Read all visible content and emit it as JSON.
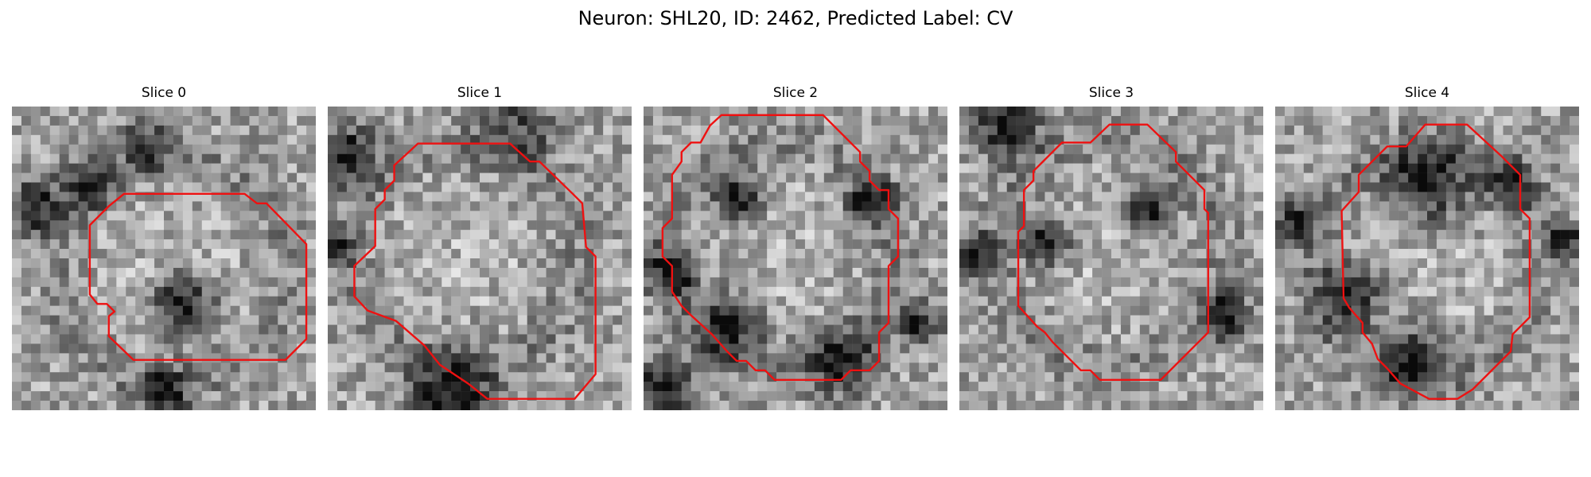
{
  "figure": {
    "title": "Neuron: SHL20, ID: 2462, Predicted Label: CV"
  },
  "contour_color": "#ee1111",
  "grid_size": 32,
  "slices": [
    {
      "title": "Slice 0",
      "seed": 11,
      "darks": [
        [
          2.5,
          10.5,
          3.2,
          4.2
        ],
        [
          8.0,
          8.0,
          3.0,
          1.2
        ],
        [
          18.0,
          21.0,
          4.0,
          1.6
        ],
        [
          16.0,
          30.0,
          3.0,
          1.3
        ],
        [
          14.0,
          4.0,
          3.0,
          0.8
        ]
      ],
      "contour": [
        [
          11.8,
          9.2
        ],
        [
          24.5,
          9.2
        ],
        [
          25.8,
          10.2
        ],
        [
          26.8,
          10.2
        ],
        [
          31.0,
          14.5
        ],
        [
          31.0,
          24.5
        ],
        [
          28.8,
          26.7
        ],
        [
          12.8,
          26.7
        ],
        [
          10.2,
          24.2
        ],
        [
          10.2,
          22.1
        ],
        [
          10.8,
          21.6
        ],
        [
          10.0,
          20.8
        ],
        [
          9.0,
          20.8
        ],
        [
          8.2,
          19.8
        ],
        [
          8.2,
          12.5
        ],
        [
          10.2,
          10.5
        ]
      ]
    },
    {
      "title": "Slice 1",
      "seed": 23,
      "darks": [
        [
          2.0,
          5.0,
          3.6,
          4.5
        ],
        [
          1.0,
          15.0,
          2.0,
          1.0
        ],
        [
          13.0,
          30.0,
          5.0,
          1.0
        ],
        [
          20.0,
          2.0,
          5.0,
          0.6
        ]
      ],
      "contour": [
        [
          9.5,
          3.9
        ],
        [
          19.2,
          3.9
        ],
        [
          21.3,
          5.8
        ],
        [
          22.3,
          5.8
        ],
        [
          25.8,
          9.2
        ],
        [
          26.8,
          10.2
        ],
        [
          27.2,
          14.8
        ],
        [
          28.2,
          15.8
        ],
        [
          28.2,
          28.2
        ],
        [
          26.0,
          30.8
        ],
        [
          16.8,
          30.8
        ],
        [
          14.8,
          29.2
        ],
        [
          11.8,
          27.2
        ],
        [
          10.2,
          25.2
        ],
        [
          7.2,
          22.6
        ],
        [
          4.2,
          21.5
        ],
        [
          2.8,
          20.0
        ],
        [
          2.8,
          16.8
        ],
        [
          5.0,
          14.7
        ],
        [
          5.0,
          10.8
        ],
        [
          6.0,
          9.8
        ],
        [
          6.0,
          8.8
        ],
        [
          7.0,
          7.8
        ],
        [
          7.0,
          6.2
        ]
      ]
    },
    {
      "title": "Slice 2",
      "seed": 37,
      "darks": [
        [
          3.0,
          17.5,
          3.0,
          4.0
        ],
        [
          21.0,
          27.0,
          4.0,
          3.0
        ],
        [
          29.0,
          23.0,
          2.5,
          2.0
        ],
        [
          10.0,
          10.0,
          3.0,
          1.5
        ],
        [
          9.0,
          23.0,
          4.0,
          1.5
        ],
        [
          24.0,
          10.0,
          3.0,
          1.2
        ],
        [
          2.0,
          30.0,
          4.0,
          1.0
        ]
      ],
      "contour": [
        [
          8.2,
          0.9
        ],
        [
          18.9,
          0.9
        ],
        [
          22.8,
          4.8
        ],
        [
          22.8,
          5.8
        ],
        [
          23.8,
          6.8
        ],
        [
          23.8,
          7.8
        ],
        [
          24.8,
          8.8
        ],
        [
          25.8,
          8.8
        ],
        [
          25.8,
          10.8
        ],
        [
          26.8,
          11.8
        ],
        [
          26.8,
          15.8
        ],
        [
          25.8,
          16.8
        ],
        [
          25.8,
          22.8
        ],
        [
          24.8,
          23.8
        ],
        [
          24.8,
          26.8
        ],
        [
          23.8,
          27.8
        ],
        [
          21.8,
          27.8
        ],
        [
          20.8,
          28.8
        ],
        [
          13.8,
          28.8
        ],
        [
          12.8,
          27.8
        ],
        [
          11.8,
          27.8
        ],
        [
          10.8,
          26.8
        ],
        [
          9.8,
          26.8
        ],
        [
          8.8,
          25.8
        ],
        [
          7.2,
          24.0
        ],
        [
          5.0,
          22.0
        ],
        [
          4.0,
          21.0
        ],
        [
          3.0,
          19.5
        ],
        [
          3.0,
          16.8
        ],
        [
          2.0,
          15.8
        ],
        [
          2.0,
          12.8
        ],
        [
          3.0,
          11.8
        ],
        [
          3.0,
          7.2
        ],
        [
          4.0,
          5.8
        ],
        [
          4.0,
          4.8
        ],
        [
          5.0,
          3.8
        ],
        [
          6.0,
          3.8
        ],
        [
          7.0,
          2.0
        ]
      ]
    },
    {
      "title": "Slice 3",
      "seed": 53,
      "darks": [
        [
          1.5,
          15.5,
          2.5,
          3.0
        ],
        [
          28.0,
          22.0,
          3.0,
          1.4
        ],
        [
          9.0,
          14.0,
          3.0,
          1.2
        ],
        [
          20.0,
          11.0,
          3.0,
          1.0
        ],
        [
          5.0,
          2.0,
          4.0,
          1.0
        ]
      ],
      "contour": [
        [
          15.8,
          1.9
        ],
        [
          19.8,
          1.9
        ],
        [
          22.8,
          4.8
        ],
        [
          22.8,
          5.8
        ],
        [
          25.8,
          8.8
        ],
        [
          25.8,
          10.8
        ],
        [
          26.2,
          11.2
        ],
        [
          26.2,
          23.8
        ],
        [
          25.0,
          25.0
        ],
        [
          24.2,
          25.8
        ],
        [
          22.8,
          27.2
        ],
        [
          22.2,
          27.8
        ],
        [
          21.2,
          28.8
        ],
        [
          14.8,
          28.8
        ],
        [
          13.8,
          27.8
        ],
        [
          12.8,
          27.8
        ],
        [
          9.8,
          24.8
        ],
        [
          9.0,
          23.8
        ],
        [
          8.2,
          23.2
        ],
        [
          6.2,
          21.0
        ],
        [
          6.2,
          13.2
        ],
        [
          6.8,
          12.6
        ],
        [
          6.8,
          8.8
        ],
        [
          7.8,
          7.8
        ],
        [
          7.8,
          6.8
        ],
        [
          8.8,
          5.8
        ],
        [
          9.8,
          4.8
        ],
        [
          10.8,
          3.8
        ],
        [
          13.8,
          3.8
        ]
      ]
    },
    {
      "title": "Slice 4",
      "seed": 71,
      "darks": [
        [
          14.5,
          27.0,
          4.0,
          4.5
        ],
        [
          2.0,
          12.0,
          2.5,
          3.5
        ],
        [
          30.5,
          14.0,
          2.0,
          3.0
        ],
        [
          8.0,
          20.0,
          4.0,
          1.0
        ],
        [
          25.0,
          8.0,
          3.0,
          0.8
        ],
        [
          16.0,
          8.0,
          5.0,
          1.2
        ]
      ],
      "contour": [
        [
          15.8,
          1.9
        ],
        [
          20.2,
          1.9
        ],
        [
          23.8,
          5.2
        ],
        [
          25.8,
          7.2
        ],
        [
          25.8,
          10.8
        ],
        [
          26.8,
          11.8
        ],
        [
          26.8,
          22.2
        ],
        [
          25.0,
          24.0
        ],
        [
          24.8,
          25.8
        ],
        [
          22.8,
          27.8
        ],
        [
          20.8,
          29.8
        ],
        [
          19.2,
          30.8
        ],
        [
          16.2,
          30.8
        ],
        [
          13.2,
          29.2
        ],
        [
          11.8,
          27.6
        ],
        [
          10.8,
          26.6
        ],
        [
          10.2,
          25.0
        ],
        [
          9.2,
          23.8
        ],
        [
          9.2,
          22.8
        ],
        [
          7.8,
          21.2
        ],
        [
          7.2,
          20.2
        ],
        [
          7.0,
          11.0
        ],
        [
          8.8,
          9.0
        ],
        [
          8.8,
          7.2
        ],
        [
          9.8,
          6.2
        ],
        [
          10.8,
          5.2
        ],
        [
          11.8,
          4.2
        ],
        [
          13.8,
          4.2
        ]
      ]
    }
  ]
}
